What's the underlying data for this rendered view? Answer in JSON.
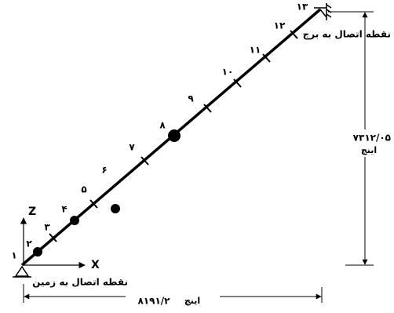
{
  "nodes": [
    "۱",
    "۲",
    "۳",
    "۴",
    "۵",
    "۶",
    "۷",
    "۸",
    "۹",
    "۱۰",
    "۱۱",
    "۱۲",
    "۱۳"
  ],
  "axes": {
    "z": "Z",
    "x": "X"
  },
  "supports": {
    "ground": "نقطه اتصال به زمین",
    "tower": "نقطه اتصال به برج"
  },
  "dimensions": {
    "vertical": {
      "value": "۷۳۱۲/۰۵",
      "unit": "اینچ"
    },
    "horizontal": {
      "value": "۸۱۹۱/۲",
      "unit": "اینچ"
    }
  }
}
